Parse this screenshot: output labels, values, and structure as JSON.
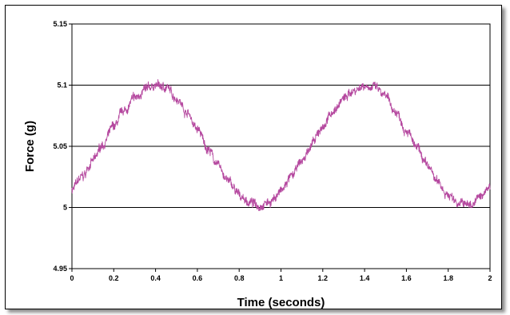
{
  "chart_data": {
    "type": "line",
    "title": "",
    "xlabel": "Time (seconds)",
    "ylabel": "Force (g)",
    "xlim": [
      0,
      2
    ],
    "ylim": [
      4.95,
      5.15
    ],
    "x_ticks": [
      "0",
      "0.2",
      "0.4",
      "0.6",
      "0.8",
      "1",
      "1.2",
      "1.4",
      "1.6",
      "1.8",
      "2"
    ],
    "y_ticks": [
      "4.95",
      "5",
      "5.05",
      "5.1",
      "5.15"
    ],
    "gridlines": "horizontal",
    "legend": "none",
    "series": [
      {
        "color": "#b5489f",
        "x": [
          0,
          0.05,
          0.1,
          0.15,
          0.2,
          0.25,
          0.3,
          0.35,
          0.4,
          0.45,
          0.5,
          0.55,
          0.6,
          0.65,
          0.7,
          0.75,
          0.8,
          0.85,
          0.9,
          0.95,
          1.0,
          1.05,
          1.1,
          1.15,
          1.2,
          1.25,
          1.3,
          1.35,
          1.4,
          1.45,
          1.5,
          1.55,
          1.6,
          1.65,
          1.7,
          1.75,
          1.8,
          1.85,
          1.9,
          1.95,
          2.0
        ],
        "y": [
          5.015,
          5.025,
          5.038,
          5.052,
          5.066,
          5.079,
          5.089,
          5.096,
          5.1,
          5.098,
          5.09,
          5.078,
          5.064,
          5.048,
          5.034,
          5.021,
          5.01,
          5.004,
          5.002,
          5.005,
          5.013,
          5.025,
          5.038,
          5.052,
          5.066,
          5.079,
          5.089,
          5.096,
          5.1,
          5.098,
          5.09,
          5.078,
          5.064,
          5.048,
          5.034,
          5.021,
          5.01,
          5.004,
          5.002,
          5.008,
          5.018
        ]
      }
    ]
  }
}
